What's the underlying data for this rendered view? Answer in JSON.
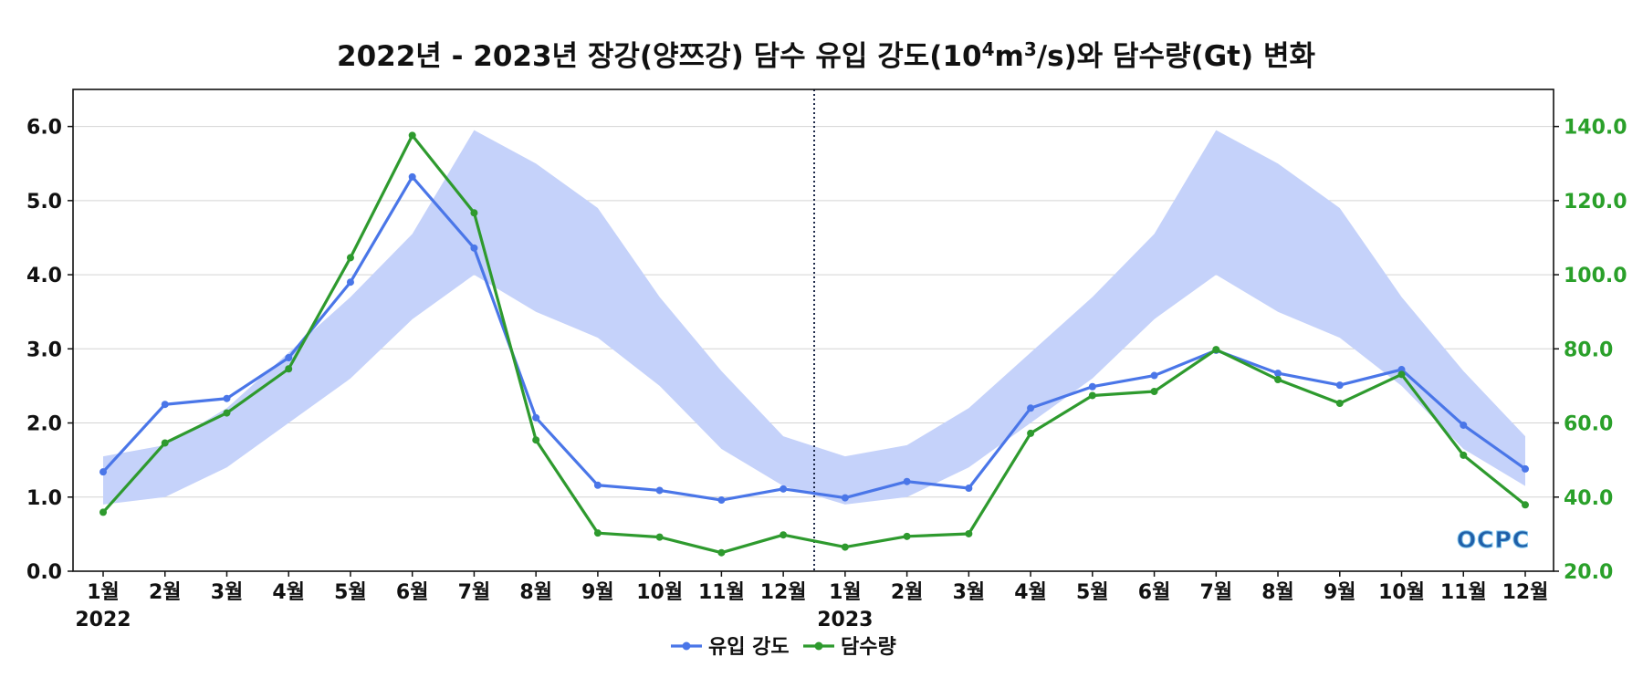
{
  "chart_data": {
    "type": "line",
    "title_parts": {
      "pre": "2022년 - 2023년 장강(양쯔강) 담수 유입 강도(10",
      "sup1": "4",
      "mid": "m",
      "sup2": "3",
      "post": "/s)와 담수량(Gt) 변화"
    },
    "categories": [
      "1월",
      "2월",
      "3월",
      "4월",
      "5월",
      "6월",
      "7월",
      "8월",
      "9월",
      "10월",
      "11월",
      "12월",
      "1월",
      "2월",
      "3월",
      "4월",
      "5월",
      "6월",
      "7월",
      "8월",
      "9월",
      "10월",
      "11월",
      "12월"
    ],
    "year_labels": [
      {
        "index": 0,
        "label": "2022"
      },
      {
        "index": 12,
        "label": "2023"
      }
    ],
    "divider_between": [
      11,
      12
    ],
    "left_axis": {
      "ylim": [
        0,
        6.5
      ],
      "ticks": [
        0,
        1,
        2,
        3,
        4,
        5,
        6
      ],
      "tick_labels": [
        "0.0",
        "1.0",
        "2.0",
        "3.0",
        "4.0",
        "5.0",
        "6.0"
      ],
      "color": "#111111"
    },
    "right_axis": {
      "ylim": [
        20,
        150
      ],
      "ticks": [
        20,
        40,
        60,
        80,
        100,
        120,
        140
      ],
      "tick_labels": [
        "20.0",
        "40.0",
        "60.0",
        "80.0",
        "100.0",
        "120.0",
        "140.0"
      ],
      "color": "#2aa02a"
    },
    "grid": true,
    "band": {
      "axis": "left",
      "color": "#c5d2fa",
      "lower": [
        0.9,
        1.0,
        1.4,
        2.0,
        2.6,
        3.4,
        4.0,
        3.5,
        3.15,
        2.5,
        1.65,
        1.15,
        0.9,
        1.0,
        1.4,
        2.0,
        2.6,
        3.4,
        4.0,
        3.5,
        3.15,
        2.5,
        1.65,
        1.15
      ],
      "upper": [
        1.55,
        1.7,
        2.2,
        2.95,
        3.7,
        4.55,
        5.95,
        5.5,
        4.9,
        3.7,
        2.7,
        1.82,
        1.55,
        1.7,
        2.2,
        2.95,
        3.7,
        4.55,
        5.95,
        5.5,
        4.9,
        3.7,
        2.7,
        1.82
      ]
    },
    "series": [
      {
        "name": "유입 강도",
        "axis": "left",
        "color": "#4a76e8",
        "values": [
          1.34,
          2.25,
          2.33,
          2.88,
          3.9,
          5.32,
          4.36,
          2.07,
          1.16,
          1.09,
          0.96,
          1.11,
          0.99,
          1.21,
          1.12,
          2.2,
          2.49,
          2.64,
          2.98,
          2.67,
          2.51,
          2.72,
          1.97,
          1.38
        ]
      },
      {
        "name": "담수량",
        "axis": "right",
        "color": "#2e9a2e",
        "values": [
          35.9,
          54.6,
          62.7,
          74.6,
          104.6,
          137.6,
          116.7,
          55.4,
          30.3,
          29.2,
          25.0,
          29.8,
          26.5,
          29.4,
          30.1,
          57.2,
          67.4,
          68.5,
          79.8,
          71.7,
          65.3,
          73.1,
          51.3,
          37.9
        ]
      }
    ],
    "legend_position": "bottom-center"
  },
  "watermark": {
    "text": "OCPC",
    "color": "#1f5fa8"
  }
}
